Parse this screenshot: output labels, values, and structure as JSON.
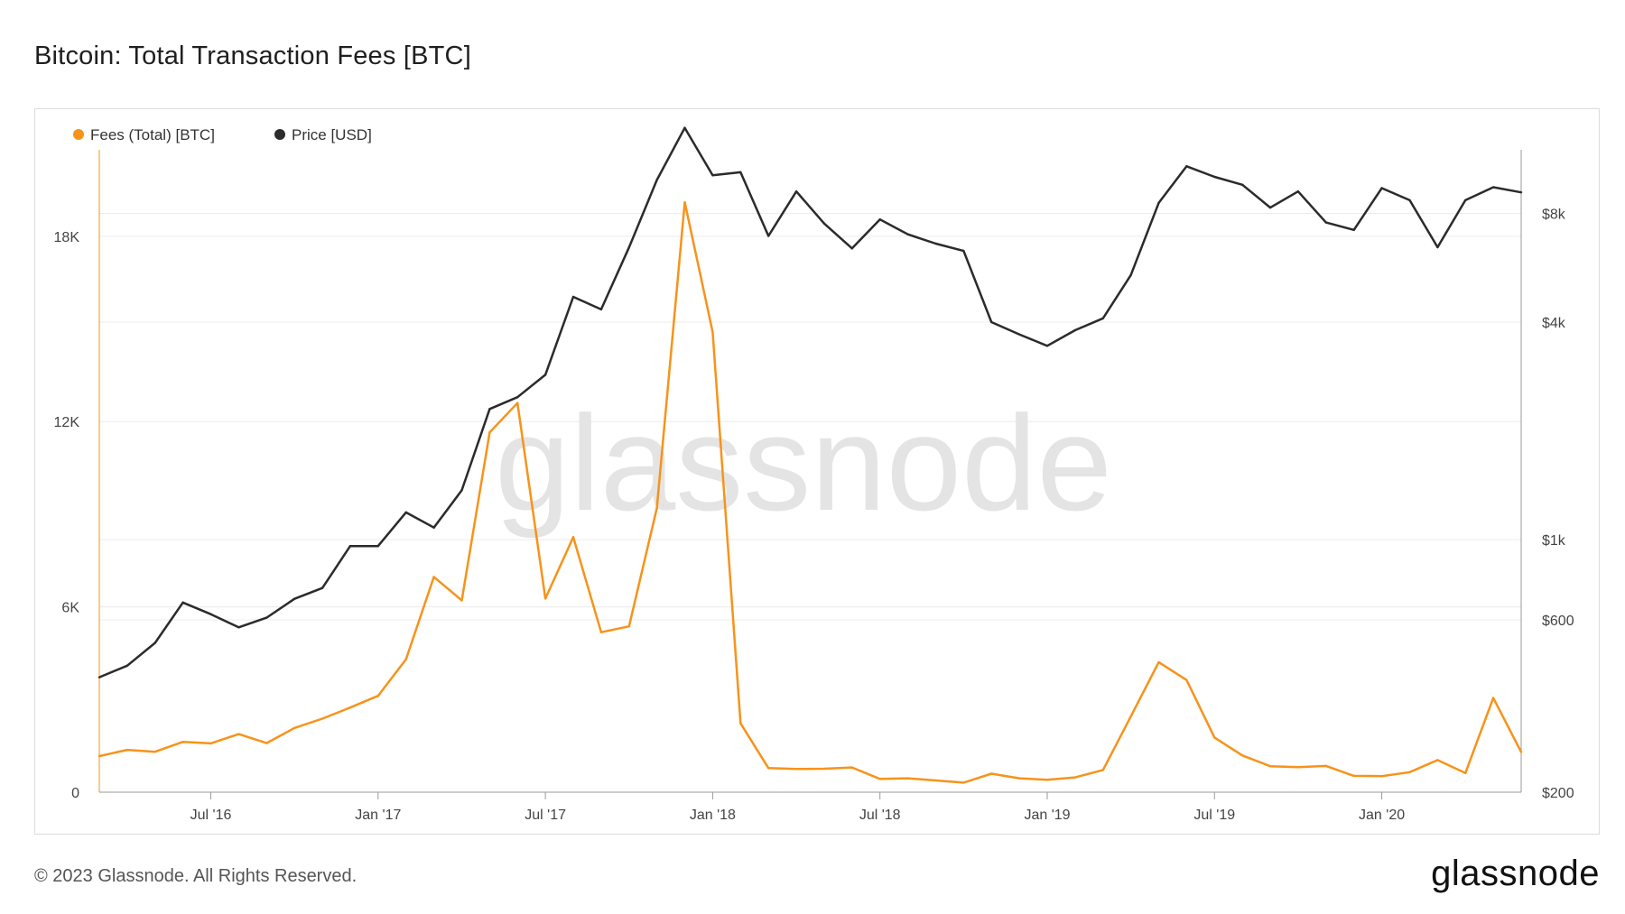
{
  "page": {
    "title": "Bitcoin: Total Transaction Fees [BTC]",
    "copyright": "© 2023 Glassnode. All Rights Reserved.",
    "logo": "glassnode",
    "watermark": "glassnode"
  },
  "colors": {
    "fees": "#f7931a",
    "price": "#2b2b2b",
    "grid": "#ececec",
    "axis": "#9a9a9a"
  },
  "chart_data": {
    "type": "line",
    "title": "Bitcoin: Total Transaction Fees [BTC]",
    "legend": {
      "placement": "top-left"
    },
    "grid": true,
    "x_ticks": [
      "Jul '16",
      "Jan '17",
      "Jul '17",
      "Jan '18",
      "Jul '18",
      "Jan '19",
      "Jul '19",
      "Jan '20"
    ],
    "x": [
      "2016-03",
      "2016-04",
      "2016-05",
      "2016-06",
      "2016-07",
      "2016-08",
      "2016-09",
      "2016-10",
      "2016-11",
      "2016-12",
      "2017-01",
      "2017-02",
      "2017-03",
      "2017-04",
      "2017-05",
      "2017-06",
      "2017-07",
      "2017-08",
      "2017-09",
      "2017-10",
      "2017-11",
      "2017-12",
      "2018-01",
      "2018-02",
      "2018-03",
      "2018-04",
      "2018-05",
      "2018-06",
      "2018-07",
      "2018-08",
      "2018-09",
      "2018-10",
      "2018-11",
      "2018-12",
      "2019-01",
      "2019-02",
      "2019-03",
      "2019-04",
      "2019-05",
      "2019-06",
      "2019-07",
      "2019-08",
      "2019-09",
      "2019-10",
      "2019-11",
      "2019-12",
      "2020-01",
      "2020-02",
      "2020-03",
      "2020-04",
      "2020-05",
      "2020-06"
    ],
    "left_axis": {
      "ticks": [
        "0",
        "6K",
        "12K",
        "18K"
      ],
      "range": [
        0,
        20800
      ]
    },
    "right_axis": {
      "scale": "log",
      "ticks": [
        "$200",
        "$600",
        "$1k",
        "$4k",
        "$8k"
      ],
      "range": [
        200,
        12000
      ]
    },
    "series": [
      {
        "name": "Fees (Total) [BTC]",
        "axis": "left",
        "values": [
          1170,
          1370,
          1310,
          1630,
          1580,
          1880,
          1590,
          2080,
          2380,
          2740,
          3120,
          4300,
          6970,
          6210,
          11650,
          12600,
          6270,
          8260,
          5180,
          5370,
          9200,
          19100,
          14900,
          2230,
          780,
          750,
          760,
          800,
          430,
          450,
          380,
          310,
          600,
          450,
          400,
          480,
          720,
          2450,
          4210,
          3630,
          1770,
          1190,
          840,
          810,
          850,
          530,
          520,
          650,
          1040,
          620,
          3050,
          1300
        ]
      },
      {
        "name": "Price [USD]",
        "axis": "right",
        "scale": "log",
        "values": [
          416,
          448,
          518,
          670,
          622,
          572,
          608,
          686,
          735,
          960,
          960,
          1190,
          1080,
          1370,
          2300,
          2480,
          2860,
          4700,
          4340,
          6440,
          9900,
          13800,
          10200,
          10400,
          6930,
          9200,
          7500,
          6400,
          7700,
          7000,
          6600,
          6300,
          4000,
          3700,
          3440,
          3800,
          4100,
          5400,
          8550,
          10800,
          10100,
          9600,
          8300,
          9200,
          7550,
          7200,
          9400,
          8700,
          6450,
          8700,
          9450,
          9150
        ]
      }
    ]
  }
}
